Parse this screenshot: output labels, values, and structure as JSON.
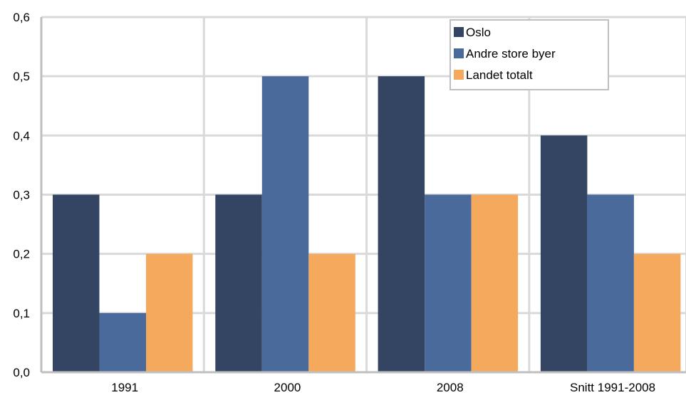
{
  "colors": {
    "background": "#ffffff",
    "gridline": "#d9d9d9",
    "axis": "#bfbfbf",
    "legend_border": "#bfbfbf"
  },
  "chart_data": {
    "type": "bar",
    "title": "",
    "xlabel": "",
    "ylabel": "",
    "categories": [
      "1991",
      "2000",
      "2008",
      "Snitt 1991-2008"
    ],
    "series": [
      {
        "name": "Oslo",
        "color": "#344563",
        "values": [
          0.3,
          0.3,
          0.5,
          0.4
        ]
      },
      {
        "name": "Andre store byer",
        "color": "#4a6a9c",
        "values": [
          0.1,
          0.5,
          0.3,
          0.3
        ]
      },
      {
        "name": "Landet totalt",
        "color": "#f5a95c",
        "values": [
          0.2,
          0.2,
          0.3,
          0.2
        ]
      }
    ],
    "ylim": [
      0,
      0.6
    ],
    "yticks": [
      0.0,
      0.1,
      0.2,
      0.3,
      0.4,
      0.5,
      0.6
    ],
    "ytick_labels": [
      "0,0",
      "0,1",
      "0,2",
      "0,3",
      "0,4",
      "0,5",
      "0,6"
    ],
    "grid": true,
    "legend_position": "top-right"
  }
}
